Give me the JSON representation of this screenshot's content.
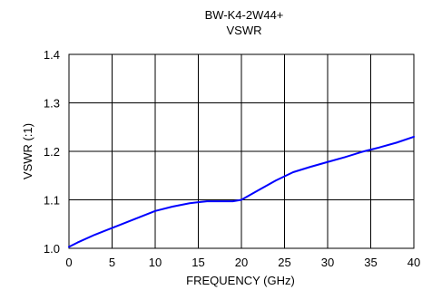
{
  "chart_data": {
    "type": "line",
    "title": "BW-K4-2W44+",
    "subtitle": "VSWR",
    "xlabel": "FREQUENCY (GHz)",
    "ylabel": "VSWR (:1)",
    "xlim": [
      0,
      40
    ],
    "ylim": [
      1.0,
      1.4
    ],
    "xticks": [
      "0",
      "5",
      "10",
      "15",
      "20",
      "25",
      "30",
      "35",
      "40"
    ],
    "yticks": [
      "1.0",
      "1.1",
      "1.2",
      "1.3",
      "1.4"
    ],
    "grid": true,
    "line_color": "#0000ff",
    "series": [
      {
        "x": [
          0,
          1,
          3,
          5,
          7,
          9,
          10,
          12,
          14,
          15,
          16,
          17,
          18,
          19,
          20,
          22,
          24,
          26,
          28,
          30,
          32,
          34,
          36,
          38,
          40
        ],
        "y": [
          1.003,
          1.012,
          1.028,
          1.042,
          1.056,
          1.07,
          1.077,
          1.086,
          1.093,
          1.095,
          1.097,
          1.097,
          1.097,
          1.097,
          1.1,
          1.12,
          1.14,
          1.157,
          1.168,
          1.178,
          1.188,
          1.199,
          1.208,
          1.218,
          1.23
        ]
      }
    ]
  }
}
